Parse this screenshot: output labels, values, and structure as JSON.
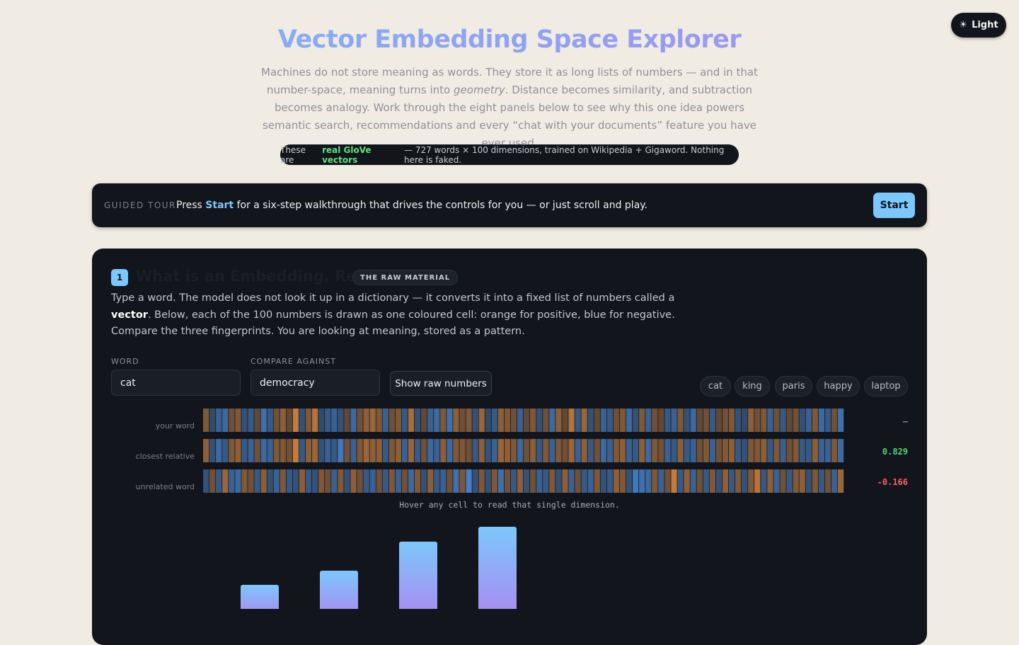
{
  "header": {
    "title": "Vector Embedding Space Explorer",
    "subtitle": [
      "Machines do not store meaning as words. They store it as long lists of numbers — and in that number-space, meaning turns into ",
      "geometry",
      ". Distance becomes similarity, and subtraction becomes analogy. Work through the eight panels below to see why this one idea powers semantic search, recommendations and every “chat with your documents” feature you have ever used."
    ],
    "badge": [
      "These are",
      "real GloVe vectors",
      "— 727 words × 100 dimensions, trained on Wikipedia + Gigaword. Nothing here is faked."
    ],
    "theme_button": {
      "icon": "☀",
      "label": "Light"
    }
  },
  "tour": {
    "label": "GUIDED TOUR",
    "text": [
      "Press ",
      "Start",
      " for a six-step walkthrough that drives the controls for you — or just scroll and play."
    ],
    "button": "Start"
  },
  "panel": {
    "number": "1",
    "title": "What is an Embedding, Really?",
    "tag": "THE RAW MATERIAL",
    "description": [
      "Type a word. The model does not look it up in a dictionary — it converts it into a fixed list of numbers called a ",
      "vector",
      ". Below, each of the 100 numbers is drawn as one coloured cell: orange for positive, blue for negative. Compare the three fingerprints. You are looking at meaning, stored as a pattern."
    ],
    "word_label": "WORD",
    "word_value": "cat",
    "compare_label": "COMPARE AGAINST",
    "compare_value": "democracy",
    "raw_button": "Show raw numbers",
    "chips": [
      "cat",
      "king",
      "paris",
      "happy",
      "laptop"
    ],
    "positive_color": "#e08a3c",
    "negative_color": "#4a8ee0",
    "neutral_color": "#262a33",
    "rows": [
      {
        "label": "your word",
        "score": "–",
        "values": [
          0.3,
          -0.1,
          -0.4,
          -0.5,
          0.2,
          0.3,
          -0.2,
          -0.3,
          0.1,
          -0.6,
          -0.3,
          0.2,
          0.4,
          0.1,
          0.8,
          -0.2,
          0.3,
          0.7,
          -0.1,
          -0.3,
          -0.4,
          -0.2,
          0.1,
          -0.5,
          0.2,
          0.4,
          0.5,
          0.3,
          -0.4,
          0.2,
          0.3,
          -0.3,
          0.6,
          -0.2,
          0.1,
          -0.4,
          -0.5,
          0.3,
          -0.6,
          0.4,
          0.2,
          0.3,
          -0.2,
          0.5,
          -0.1,
          -0.3,
          0.4,
          0.3,
          0.2,
          -0.4,
          0.1,
          0.3,
          -0.2,
          0.2,
          -0.5,
          0.4,
          0.1,
          0.7,
          -0.3,
          0.5,
          -0.2,
          0.1,
          -0.4,
          -0.3,
          0.2,
          0.3,
          -0.5,
          -0.2,
          0.3,
          -0.4,
          0.2,
          0.1,
          -0.3,
          -0.4,
          0.3,
          -0.2,
          -0.5,
          0.1,
          0.2,
          -0.3,
          0.1,
          0.2,
          0.3,
          -0.2,
          -0.1,
          0.4,
          0.2,
          0.3,
          -0.4,
          0.2,
          -0.3,
          0.1,
          0.2,
          -0.2,
          -0.4,
          0.3,
          -0.5,
          -0.3,
          0.2,
          -0.6
        ]
      },
      {
        "label": "closest relative",
        "score": 0.829,
        "values": [
          0.4,
          -0.2,
          -0.5,
          -0.3,
          0.3,
          0.4,
          -0.3,
          -0.4,
          0.2,
          -0.5,
          -0.4,
          0.3,
          0.3,
          0.2,
          0.8,
          -0.3,
          0.4,
          0.5,
          -0.2,
          -0.4,
          -0.3,
          -0.7,
          0.2,
          -0.4,
          0.3,
          0.5,
          0.4,
          0.4,
          -0.3,
          0.3,
          0.4,
          -0.4,
          0.5,
          -0.3,
          0.2,
          -0.5,
          -0.4,
          0.4,
          -0.5,
          0.3,
          0.3,
          0.2,
          -0.3,
          0.4,
          -0.2,
          -0.4,
          0.5,
          0.4,
          0.3,
          -0.5,
          0.2,
          0.4,
          -0.3,
          0.3,
          -0.4,
          0.3,
          0.2,
          0.5,
          -0.4,
          0.4,
          -0.3,
          0.2,
          -0.5,
          -0.4,
          0.3,
          0.4,
          -0.4,
          -0.3,
          0.4,
          -0.5,
          0.3,
          0.2,
          -0.4,
          -0.3,
          0.4,
          -0.3,
          -0.4,
          0.2,
          0.3,
          -0.4,
          0.2,
          0.3,
          0.4,
          -0.3,
          -0.2,
          0.3,
          0.3,
          0.4,
          -0.3,
          0.3,
          -0.4,
          0.2,
          0.3,
          -0.3,
          -0.3,
          0.4,
          -0.4,
          -0.4,
          0.3,
          -0.5
        ]
      },
      {
        "label": "unrelated word",
        "score": -0.166,
        "values": [
          -0.2,
          0.2,
          -0.3,
          0.5,
          -0.4,
          -0.5,
          0.3,
          0.2,
          -0.3,
          0.4,
          -0.2,
          -0.4,
          0.3,
          -0.3,
          -0.2,
          0.4,
          -0.3,
          -0.2,
          0.3,
          0.2,
          -0.4,
          0.3,
          -0.2,
          0.4,
          0.2,
          -0.3,
          -0.4,
          0.2,
          -0.3,
          0.3,
          -0.4,
          0.2,
          -0.5,
          0.3,
          -0.2,
          0.4,
          -0.3,
          -0.4,
          0.2,
          -0.6,
          0.3,
          -0.8,
          -0.2,
          0.3,
          -0.2,
          0.3,
          -0.6,
          0.2,
          -0.3,
          0.4,
          -0.2,
          0.2,
          -0.4,
          -0.3,
          0.3,
          -0.2,
          0.4,
          -0.4,
          0.2,
          -0.3,
          -0.4,
          0.3,
          -0.2,
          -0.3,
          0.4,
          0.3,
          -0.2,
          -0.7,
          -0.6,
          -0.5,
          0.3,
          -0.4,
          0.2,
          0.8,
          -0.3,
          0.4,
          -0.4,
          0.2,
          -0.3,
          0.3,
          -0.2,
          0.4,
          -0.3,
          0.3,
          -0.2,
          0.3,
          0.7,
          -0.3,
          0.4,
          -0.4,
          0.2,
          -0.3,
          0.3,
          0.4,
          -0.2,
          0.3,
          -0.3,
          0.2,
          -0.4,
          0.5
        ]
      }
    ],
    "hint": "Hover any cell to read that single dimension.",
    "bars": [
      44,
      64,
      105,
      126
    ]
  }
}
